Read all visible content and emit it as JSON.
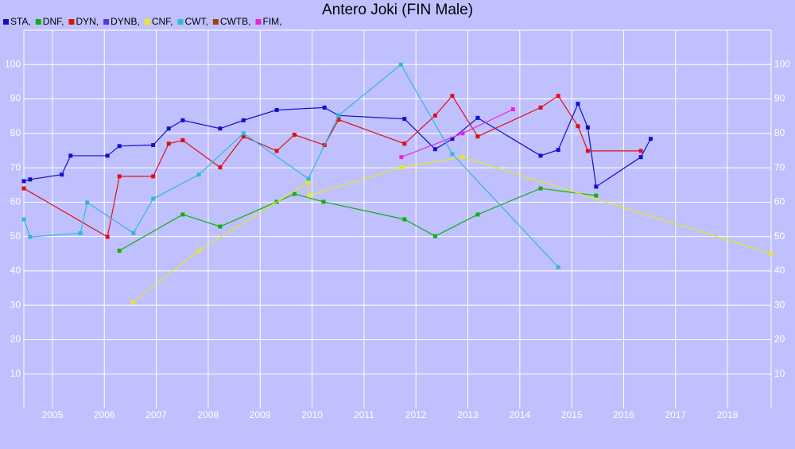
{
  "chart_data": {
    "type": "line",
    "title": "Antero Joki (FIN Male)",
    "xlim": [
      2004.45,
      2018.84
    ],
    "ylim": [
      0,
      110
    ],
    "xticks": [
      2005,
      2006,
      2007,
      2008,
      2009,
      2010,
      2011,
      2012,
      2013,
      2014,
      2015,
      2016,
      2017,
      2018
    ],
    "yticks": [
      10,
      20,
      30,
      40,
      50,
      60,
      70,
      80,
      90,
      100
    ],
    "grid": true,
    "legend": "top-left",
    "series": [
      {
        "name": "STA,",
        "color": "#1010d0",
        "x": [
          2004.45,
          2004.57,
          2005.18,
          2005.35,
          2006.06,
          2006.29,
          2006.94,
          2007.24,
          2007.51,
          2008.23,
          2008.68,
          2009.32,
          2010.24,
          2010.51,
          2011.78,
          2012.37,
          2012.7,
          2013.19,
          2014.4,
          2014.74,
          2015.12,
          2015.31,
          2015.47,
          2016.33,
          2016.52
        ],
        "values": [
          66.1,
          66.6,
          68.0,
          73.5,
          73.5,
          76.3,
          76.6,
          81.4,
          83.8,
          81.4,
          83.8,
          86.8,
          87.5,
          85.2,
          84.2,
          75.4,
          78.4,
          84.5,
          73.5,
          75.2,
          88.6,
          81.7,
          64.5,
          73.1,
          78.4
        ]
      },
      {
        "name": "DNF,",
        "color": "#10b010",
        "x": [
          2006.29,
          2007.51,
          2008.23,
          2009.32,
          2009.66,
          2010.22,
          2011.78,
          2012.37,
          2013.19,
          2014.4,
          2015.47
        ],
        "values": [
          45.9,
          56.4,
          52.9,
          60.1,
          62.4,
          60.1,
          55.0,
          50.1,
          56.4,
          64.0,
          61.9
        ]
      },
      {
        "name": "DYN,",
        "color": "#e01010",
        "x": [
          2004.45,
          2006.06,
          2006.29,
          2006.94,
          2007.24,
          2007.51,
          2008.23,
          2008.68,
          2009.32,
          2009.66,
          2010.24,
          2010.51,
          2011.78,
          2012.37,
          2012.7,
          2013.19,
          2014.4,
          2014.74,
          2015.12,
          2015.31,
          2016.33
        ],
        "values": [
          64.0,
          49.9,
          67.5,
          67.5,
          77.0,
          78.0,
          70.1,
          79.1,
          74.9,
          79.6,
          76.6,
          84.0,
          77.0,
          85.2,
          90.9,
          79.1,
          87.5,
          90.9,
          82.1,
          74.9,
          74.9
        ]
      },
      {
        "name": "DYNB,",
        "color": "#6030e0",
        "x": [],
        "values": []
      },
      {
        "name": "CNF,",
        "color": "#e8e820",
        "x": [
          2006.55,
          2007.82,
          2009.92,
          2009.95,
          2011.72,
          2012.9,
          2018.84
        ],
        "values": [
          30.9,
          45.9,
          65.7,
          61.9,
          70.1,
          73.1,
          45.0
        ]
      },
      {
        "name": "CWT,",
        "color": "#30b8d8",
        "x": [
          2004.45,
          2004.57,
          2005.54,
          2005.67,
          2006.56,
          2006.94,
          2007.82,
          2008.68,
          2009.93,
          2010.51,
          2011.71,
          2012.7,
          2014.74
        ],
        "values": [
          55.0,
          49.9,
          51.0,
          59.9,
          51.0,
          61.0,
          68.0,
          80.0,
          66.8,
          85.2,
          100,
          74.0,
          41.1
        ]
      },
      {
        "name": "CWTB,",
        "color": "#a04010",
        "x": [],
        "values": []
      },
      {
        "name": "FIM,",
        "color": "#f020e0",
        "x": [
          2011.72,
          2012.9,
          2013.87
        ],
        "values": [
          73.1,
          80.0,
          87.0
        ]
      }
    ]
  }
}
